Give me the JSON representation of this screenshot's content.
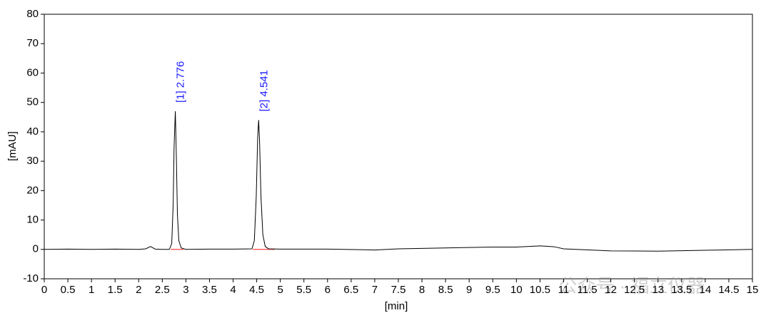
{
  "chart_data": {
    "type": "line",
    "xlabel": "[min]",
    "ylabel": "[mAU]",
    "xlim": [
      0,
      15
    ],
    "ylim": [
      -10,
      80
    ],
    "xticks": [
      0,
      0.5,
      1,
      1.5,
      2,
      2.5,
      3,
      3.5,
      4,
      4.5,
      5,
      5.5,
      6,
      6.5,
      7,
      7.5,
      8,
      8.5,
      9,
      9.5,
      10,
      10.5,
      11,
      11.5,
      12,
      12.5,
      13,
      13.5,
      14,
      14.5,
      15
    ],
    "yticks": [
      -10,
      0,
      10,
      20,
      30,
      40,
      50,
      60,
      70,
      80
    ],
    "color": "#000000",
    "x": [
      0,
      0.5,
      1,
      1.5,
      2,
      2.15,
      2.25,
      2.35,
      2.5,
      2.65,
      2.7,
      2.73,
      2.75,
      2.776,
      2.8,
      2.82,
      2.85,
      2.9,
      3,
      3.5,
      4,
      4.4,
      4.45,
      4.49,
      4.52,
      4.541,
      4.56,
      4.59,
      4.63,
      4.68,
      4.75,
      5,
      6,
      7,
      7.5,
      8.5,
      9.5,
      10,
      10.5,
      10.8,
      11,
      12,
      13,
      14,
      15
    ],
    "values": [
      0,
      0.1,
      0,
      0.1,
      0,
      0.2,
      1.0,
      0.1,
      0,
      0,
      2,
      15,
      35,
      47,
      30,
      12,
      3,
      0.5,
      0,
      0.1,
      0.1,
      0.2,
      3,
      18,
      38,
      44,
      37,
      18,
      5,
      1,
      0.2,
      0.1,
      0.1,
      -0.2,
      0.2,
      0.5,
      0.8,
      0.8,
      1.2,
      0.9,
      0.2,
      -0.5,
      -0.6,
      -0.3,
      0
    ],
    "baseline_color": "#ff4040",
    "baselines": [
      {
        "x": [
          2.68,
          2.95
        ],
        "values": [
          0,
          0
        ]
      },
      {
        "x": [
          4.42,
          4.88
        ],
        "values": [
          0,
          0
        ]
      }
    ],
    "annotation_color": "#1a1aff",
    "annotations": [
      {
        "text": "[1]  2.776",
        "x": 2.776,
        "y": 47
      },
      {
        "text": "[2]  4.541",
        "x": 4.541,
        "y": 44
      }
    ],
    "watermark": "公众号 · 福立仪器"
  }
}
